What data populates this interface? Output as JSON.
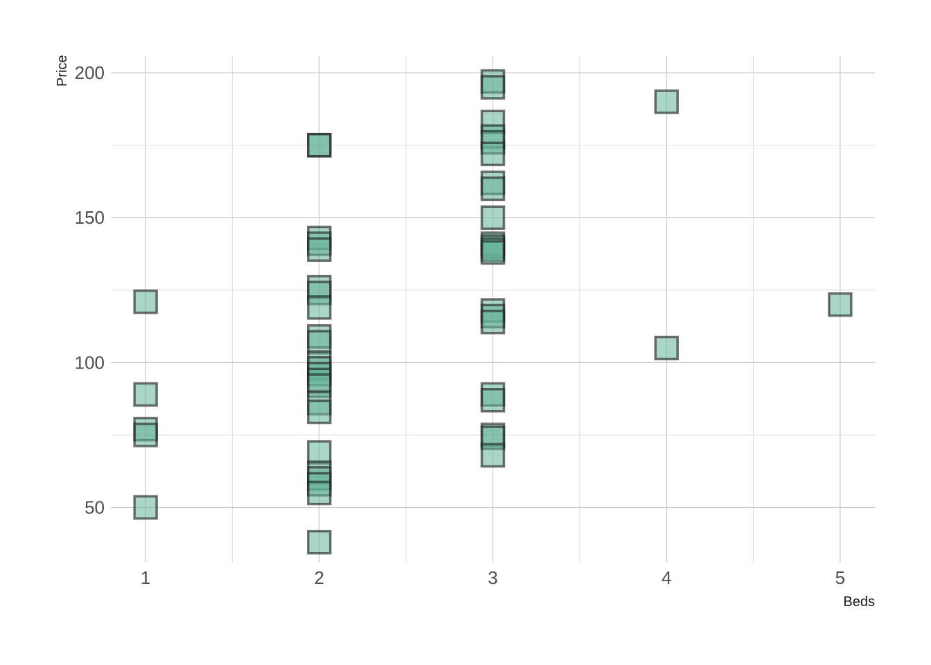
{
  "chart_data": {
    "type": "scatter",
    "title": "",
    "xlabel": "Beds",
    "ylabel": "Price",
    "xlim": [
      0.8,
      5.2
    ],
    "ylim": [
      31,
      206
    ],
    "x_ticks": [
      1,
      2,
      3,
      4,
      5
    ],
    "y_ticks": [
      50,
      100,
      150,
      200
    ],
    "grid": true,
    "marker": "square",
    "point_fill": "#66b299",
    "point_stroke": "#191919",
    "points": [
      {
        "x": 1,
        "y": 121
      },
      {
        "x": 1,
        "y": 89
      },
      {
        "x": 1,
        "y": 77
      },
      {
        "x": 1,
        "y": 75
      },
      {
        "x": 1,
        "y": 50
      },
      {
        "x": 2,
        "y": 175
      },
      {
        "x": 2,
        "y": 175
      },
      {
        "x": 2,
        "y": 143
      },
      {
        "x": 2,
        "y": 141
      },
      {
        "x": 2,
        "y": 139
      },
      {
        "x": 2,
        "y": 126
      },
      {
        "x": 2,
        "y": 124
      },
      {
        "x": 2,
        "y": 119
      },
      {
        "x": 2,
        "y": 109
      },
      {
        "x": 2,
        "y": 107
      },
      {
        "x": 2,
        "y": 100
      },
      {
        "x": 2,
        "y": 98
      },
      {
        "x": 2,
        "y": 96
      },
      {
        "x": 2,
        "y": 94
      },
      {
        "x": 2,
        "y": 92
      },
      {
        "x": 2,
        "y": 86
      },
      {
        "x": 2,
        "y": 83
      },
      {
        "x": 2,
        "y": 69
      },
      {
        "x": 2,
        "y": 62
      },
      {
        "x": 2,
        "y": 60
      },
      {
        "x": 2,
        "y": 58
      },
      {
        "x": 2,
        "y": 55
      },
      {
        "x": 2,
        "y": 38
      },
      {
        "x": 3,
        "y": 197
      },
      {
        "x": 3,
        "y": 195
      },
      {
        "x": 3,
        "y": 183
      },
      {
        "x": 3,
        "y": 178
      },
      {
        "x": 3,
        "y": 176
      },
      {
        "x": 3,
        "y": 172
      },
      {
        "x": 3,
        "y": 162
      },
      {
        "x": 3,
        "y": 160
      },
      {
        "x": 3,
        "y": 150
      },
      {
        "x": 3,
        "y": 141
      },
      {
        "x": 3,
        "y": 140
      },
      {
        "x": 3,
        "y": 139
      },
      {
        "x": 3,
        "y": 138
      },
      {
        "x": 3,
        "y": 118
      },
      {
        "x": 3,
        "y": 116
      },
      {
        "x": 3,
        "y": 114
      },
      {
        "x": 3,
        "y": 89
      },
      {
        "x": 3,
        "y": 87
      },
      {
        "x": 3,
        "y": 75
      },
      {
        "x": 3,
        "y": 74
      },
      {
        "x": 3,
        "y": 68
      },
      {
        "x": 4,
        "y": 190
      },
      {
        "x": 4,
        "y": 105
      },
      {
        "x": 5,
        "y": 120
      }
    ]
  }
}
